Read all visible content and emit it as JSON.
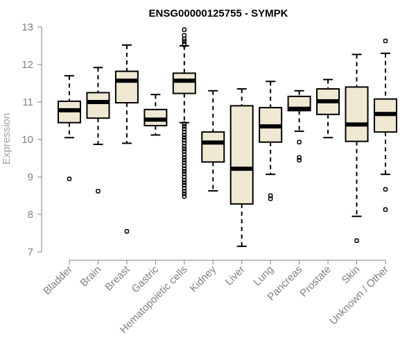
{
  "chart_data": {
    "type": "boxplot",
    "title": "ENSG00000125755 - SYMPK",
    "xlabel": "",
    "ylabel": "Expression",
    "ylim": [
      7,
      13
    ],
    "yticks": [
      "7",
      "8",
      "9",
      "10",
      "11",
      "12",
      "13"
    ],
    "categories": [
      "Bladder",
      "Brain",
      "Breast",
      "Gastric",
      "Hematopoietic cells",
      "Kidney",
      "Liver",
      "Lung",
      "Pancreas",
      "Prostate",
      "Skin",
      "Unknown / Other"
    ],
    "boxes": [
      {
        "whisker_low": 10.05,
        "q1": 10.45,
        "median": 10.78,
        "q3": 11.02,
        "whisker_high": 11.7,
        "outliers": [
          8.95
        ]
      },
      {
        "whisker_low": 9.87,
        "q1": 10.57,
        "median": 11.0,
        "q3": 11.25,
        "whisker_high": 11.92,
        "outliers": [
          8.62
        ]
      },
      {
        "whisker_low": 9.9,
        "q1": 10.98,
        "median": 11.57,
        "q3": 11.82,
        "whisker_high": 12.52,
        "outliers": [
          7.55
        ]
      },
      {
        "whisker_low": 10.12,
        "q1": 10.37,
        "median": 10.53,
        "q3": 10.8,
        "whisker_high": 11.2,
        "outliers": []
      },
      {
        "whisker_low": 10.45,
        "q1": 11.23,
        "median": 11.57,
        "q3": 11.77,
        "whisker_high": 12.5,
        "outliers": [
          12.93,
          12.78,
          12.68,
          12.62,
          12.55,
          12.52,
          10.42,
          10.35,
          10.28,
          10.2,
          10.12,
          10.05,
          9.98,
          9.9,
          9.82,
          9.75,
          9.68,
          9.6,
          9.52,
          9.45,
          9.38,
          9.3,
          9.22,
          9.15,
          9.08,
          9.0,
          8.92,
          8.85,
          8.78,
          8.7,
          8.62,
          8.55,
          8.48
        ]
      },
      {
        "whisker_low": 8.63,
        "q1": 9.4,
        "median": 9.92,
        "q3": 10.2,
        "whisker_high": 11.3,
        "outliers": []
      },
      {
        "whisker_low": 7.15,
        "q1": 8.28,
        "median": 9.22,
        "q3": 10.9,
        "whisker_high": 11.35,
        "outliers": []
      },
      {
        "whisker_low": 9.07,
        "q1": 9.93,
        "median": 10.35,
        "q3": 10.85,
        "whisker_high": 11.55,
        "outliers": [
          8.5,
          8.42
        ]
      },
      {
        "whisker_low": 10.22,
        "q1": 10.77,
        "median": 10.82,
        "q3": 11.15,
        "whisker_high": 11.3,
        "outliers": [
          9.93,
          9.52,
          9.45
        ]
      },
      {
        "whisker_low": 10.05,
        "q1": 10.67,
        "median": 11.02,
        "q3": 11.35,
        "whisker_high": 11.6,
        "outliers": []
      },
      {
        "whisker_low": 7.95,
        "q1": 9.95,
        "median": 10.4,
        "q3": 11.4,
        "whisker_high": 12.27,
        "outliers": [
          7.3
        ]
      },
      {
        "whisker_low": 9.07,
        "q1": 10.2,
        "median": 10.68,
        "q3": 11.08,
        "whisker_high": 12.3,
        "outliers": [
          12.63,
          8.67,
          8.13
        ]
      }
    ],
    "grid": false,
    "legend": "none",
    "colors": {
      "box_fill": "#efe8d3",
      "box_stroke": "#000000",
      "axis": "#808080",
      "title": "#000000"
    }
  }
}
